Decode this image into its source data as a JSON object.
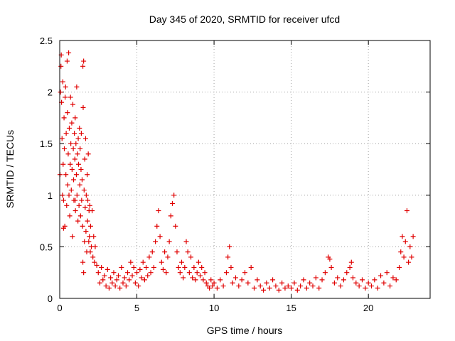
{
  "chart_data": {
    "type": "scatter",
    "title": "Day 345 of 2020, SRMTID for receiver ufcd",
    "xlabel": "GPS time / hours",
    "ylabel": "SRMTID / TECUs",
    "xlim": [
      0,
      24
    ],
    "ylim": [
      0,
      2.5
    ],
    "xticks": [
      {
        "value": 0,
        "label": "0"
      },
      {
        "value": 5,
        "label": "5"
      },
      {
        "value": 10,
        "label": "10"
      },
      {
        "value": 15,
        "label": "15"
      },
      {
        "value": 20,
        "label": "20"
      }
    ],
    "yticks": [
      {
        "value": 0,
        "label": "0"
      },
      {
        "value": 0.5,
        "label": "0.5"
      },
      {
        "value": 1,
        "label": "1"
      },
      {
        "value": 1.5,
        "label": "1.5"
      },
      {
        "value": 2,
        "label": "2"
      },
      {
        "value": 2.5,
        "label": "2.5"
      }
    ],
    "grid": true,
    "marker": "+",
    "color": "#e00000",
    "series": [
      {
        "name": "SRMTID",
        "points": [
          [
            0.02,
            1.2
          ],
          [
            0.05,
            2.0
          ],
          [
            0.08,
            2.25
          ],
          [
            0.1,
            2.36
          ],
          [
            0.12,
            1.9
          ],
          [
            0.15,
            1.55
          ],
          [
            0.18,
            1.0
          ],
          [
            0.2,
            2.1
          ],
          [
            0.22,
            1.3
          ],
          [
            0.25,
            0.95
          ],
          [
            0.28,
            1.75
          ],
          [
            0.3,
            1.45
          ],
          [
            0.33,
            0.7
          ],
          [
            0.35,
            1.95
          ],
          [
            0.38,
            2.05
          ],
          [
            0.4,
            1.2
          ],
          [
            0.42,
            1.6
          ],
          [
            0.45,
            0.9
          ],
          [
            0.48,
            2.3
          ],
          [
            0.5,
            1.8
          ],
          [
            0.52,
            1.1
          ],
          [
            0.55,
            1.4
          ],
          [
            0.58,
            2.38
          ],
          [
            0.6,
            1.0
          ],
          [
            0.62,
            1.65
          ],
          [
            0.65,
            0.8
          ],
          [
            0.68,
            1.3
          ],
          [
            0.7,
            1.95
          ],
          [
            0.72,
            1.5
          ],
          [
            0.75,
            1.05
          ],
          [
            0.78,
            1.7
          ],
          [
            0.8,
            1.25
          ],
          [
            0.82,
            0.6
          ],
          [
            0.85,
            1.88
          ],
          [
            0.88,
            1.45
          ],
          [
            0.9,
            1.15
          ],
          [
            0.92,
            0.95
          ],
          [
            0.95,
            1.6
          ],
          [
            0.98,
            1.35
          ],
          [
            1.0,
            1.75
          ],
          [
            1.02,
            0.85
          ],
          [
            1.05,
            1.5
          ],
          [
            1.08,
            1.2
          ],
          [
            1.1,
            2.05
          ],
          [
            1.12,
            1.0
          ],
          [
            1.15,
            1.4
          ],
          [
            1.18,
            0.75
          ],
          [
            1.2,
            1.55
          ],
          [
            1.22,
            1.3
          ],
          [
            1.25,
            0.9
          ],
          [
            1.28,
            1.65
          ],
          [
            1.3,
            1.1
          ],
          [
            1.32,
            1.45
          ],
          [
            1.35,
            0.8
          ],
          [
            1.38,
            1.25
          ],
          [
            1.4,
            1.6
          ],
          [
            1.42,
            0.95
          ],
          [
            1.45,
            1.15
          ],
          [
            1.48,
            0.7
          ],
          [
            1.5,
            2.25
          ],
          [
            1.52,
            1.85
          ],
          [
            1.55,
            2.3
          ],
          [
            1.58,
            1.05
          ],
          [
            1.6,
            0.55
          ],
          [
            1.62,
            1.35
          ],
          [
            1.65,
            0.88
          ],
          [
            1.68,
            1.55
          ],
          [
            1.7,
            0.65
          ],
          [
            1.72,
            1.0
          ],
          [
            1.75,
            0.45
          ],
          [
            1.78,
            1.2
          ],
          [
            1.8,
            0.75
          ],
          [
            1.82,
            0.95
          ],
          [
            1.85,
            1.4
          ],
          [
            1.88,
            0.55
          ],
          [
            1.9,
            0.85
          ],
          [
            1.92,
            0.6
          ],
          [
            1.95,
            0.9
          ],
          [
            1.98,
            0.45
          ],
          [
            2.0,
            0.7
          ],
          [
            2.05,
            0.5
          ],
          [
            2.1,
            0.85
          ],
          [
            2.15,
            0.4
          ],
          [
            2.2,
            0.6
          ],
          [
            2.25,
            0.35
          ],
          [
            2.3,
            0.5
          ],
          [
            1.55,
            0.25
          ],
          [
            1.5,
            0.35
          ],
          [
            1.0,
            0.95
          ],
          [
            0.25,
            0.68
          ],
          [
            2.4,
            0.32
          ],
          [
            2.5,
            0.25
          ],
          [
            2.6,
            0.15
          ],
          [
            2.7,
            0.3
          ],
          [
            2.8,
            0.18
          ],
          [
            2.9,
            0.22
          ],
          [
            3.0,
            0.12
          ],
          [
            3.1,
            0.28
          ],
          [
            3.2,
            0.1
          ],
          [
            3.3,
            0.2
          ],
          [
            3.4,
            0.15
          ],
          [
            3.5,
            0.25
          ],
          [
            3.6,
            0.12
          ],
          [
            3.7,
            0.18
          ],
          [
            3.8,
            0.22
          ],
          [
            3.9,
            0.1
          ],
          [
            4.0,
            0.3
          ],
          [
            4.1,
            0.15
          ],
          [
            4.2,
            0.2
          ],
          [
            4.3,
            0.12
          ],
          [
            4.4,
            0.25
          ],
          [
            4.5,
            0.18
          ],
          [
            4.6,
            0.35
          ],
          [
            4.7,
            0.22
          ],
          [
            4.8,
            0.3
          ],
          [
            4.9,
            0.15
          ],
          [
            5.0,
            0.25
          ],
          [
            5.1,
            0.12
          ],
          [
            5.2,
            0.28
          ],
          [
            5.3,
            0.2
          ],
          [
            5.4,
            0.35
          ],
          [
            5.5,
            0.18
          ],
          [
            5.6,
            0.3
          ],
          [
            5.7,
            0.22
          ],
          [
            5.8,
            0.4
          ],
          [
            5.9,
            0.25
          ],
          [
            6.0,
            0.45
          ],
          [
            6.1,
            0.3
          ],
          [
            6.2,
            0.55
          ],
          [
            6.3,
            0.7
          ],
          [
            6.4,
            0.85
          ],
          [
            6.5,
            0.6
          ],
          [
            6.6,
            0.35
          ],
          [
            6.7,
            0.28
          ],
          [
            6.8,
            0.45
          ],
          [
            6.9,
            0.25
          ],
          [
            7.0,
            0.4
          ],
          [
            7.1,
            0.55
          ],
          [
            7.2,
            0.8
          ],
          [
            7.3,
            0.92
          ],
          [
            7.4,
            1.0
          ],
          [
            7.5,
            0.7
          ],
          [
            7.6,
            0.45
          ],
          [
            7.7,
            0.3
          ],
          [
            7.8,
            0.25
          ],
          [
            7.9,
            0.35
          ],
          [
            8.0,
            0.2
          ],
          [
            8.1,
            0.3
          ],
          [
            8.2,
            0.55
          ],
          [
            8.3,
            0.45
          ],
          [
            8.4,
            0.25
          ],
          [
            8.5,
            0.4
          ],
          [
            8.6,
            0.2
          ],
          [
            8.7,
            0.3
          ],
          [
            8.8,
            0.18
          ],
          [
            8.9,
            0.25
          ],
          [
            9.0,
            0.35
          ],
          [
            9.1,
            0.22
          ],
          [
            9.2,
            0.3
          ],
          [
            9.3,
            0.18
          ],
          [
            9.4,
            0.25
          ],
          [
            9.5,
            0.15
          ],
          [
            9.6,
            0.12
          ],
          [
            9.7,
            0.1
          ],
          [
            9.8,
            0.18
          ],
          [
            9.9,
            0.12
          ],
          [
            10.0,
            0.15
          ],
          [
            10.2,
            0.1
          ],
          [
            10.4,
            0.18
          ],
          [
            10.6,
            0.12
          ],
          [
            10.8,
            0.25
          ],
          [
            10.9,
            0.4
          ],
          [
            11.0,
            0.5
          ],
          [
            11.1,
            0.3
          ],
          [
            11.2,
            0.15
          ],
          [
            11.4,
            0.2
          ],
          [
            11.6,
            0.12
          ],
          [
            11.8,
            0.18
          ],
          [
            12.0,
            0.25
          ],
          [
            12.2,
            0.15
          ],
          [
            12.4,
            0.3
          ],
          [
            12.6,
            0.1
          ],
          [
            12.8,
            0.18
          ],
          [
            13.0,
            0.12
          ],
          [
            13.2,
            0.08
          ],
          [
            13.4,
            0.15
          ],
          [
            13.6,
            0.1
          ],
          [
            13.8,
            0.18
          ],
          [
            14.0,
            0.12
          ],
          [
            14.2,
            0.08
          ],
          [
            14.4,
            0.15
          ],
          [
            14.6,
            0.1
          ],
          [
            14.8,
            0.12
          ],
          [
            15.0,
            0.1
          ],
          [
            15.2,
            0.15
          ],
          [
            15.4,
            0.08
          ],
          [
            15.6,
            0.12
          ],
          [
            15.8,
            0.18
          ],
          [
            16.0,
            0.1
          ],
          [
            16.2,
            0.15
          ],
          [
            16.4,
            0.12
          ],
          [
            16.6,
            0.2
          ],
          [
            16.8,
            0.1
          ],
          [
            17.0,
            0.18
          ],
          [
            17.2,
            0.25
          ],
          [
            17.4,
            0.4
          ],
          [
            17.5,
            0.38
          ],
          [
            17.6,
            0.3
          ],
          [
            17.8,
            0.15
          ],
          [
            18.0,
            0.2
          ],
          [
            18.2,
            0.12
          ],
          [
            18.4,
            0.18
          ],
          [
            18.6,
            0.25
          ],
          [
            18.8,
            0.3
          ],
          [
            18.9,
            0.35
          ],
          [
            19.0,
            0.2
          ],
          [
            19.2,
            0.15
          ],
          [
            19.4,
            0.12
          ],
          [
            19.6,
            0.18
          ],
          [
            19.8,
            0.1
          ],
          [
            20.0,
            0.15
          ],
          [
            20.2,
            0.12
          ],
          [
            20.4,
            0.18
          ],
          [
            20.6,
            0.1
          ],
          [
            20.8,
            0.22
          ],
          [
            21.0,
            0.15
          ],
          [
            21.2,
            0.25
          ],
          [
            21.4,
            0.12
          ],
          [
            21.6,
            0.2
          ],
          [
            21.8,
            0.18
          ],
          [
            22.0,
            0.3
          ],
          [
            22.1,
            0.45
          ],
          [
            22.2,
            0.6
          ],
          [
            22.3,
            0.4
          ],
          [
            22.4,
            0.55
          ],
          [
            22.5,
            0.85
          ],
          [
            22.6,
            0.35
          ],
          [
            22.7,
            0.5
          ],
          [
            22.8,
            0.4
          ],
          [
            22.9,
            0.6
          ]
        ]
      }
    ]
  }
}
